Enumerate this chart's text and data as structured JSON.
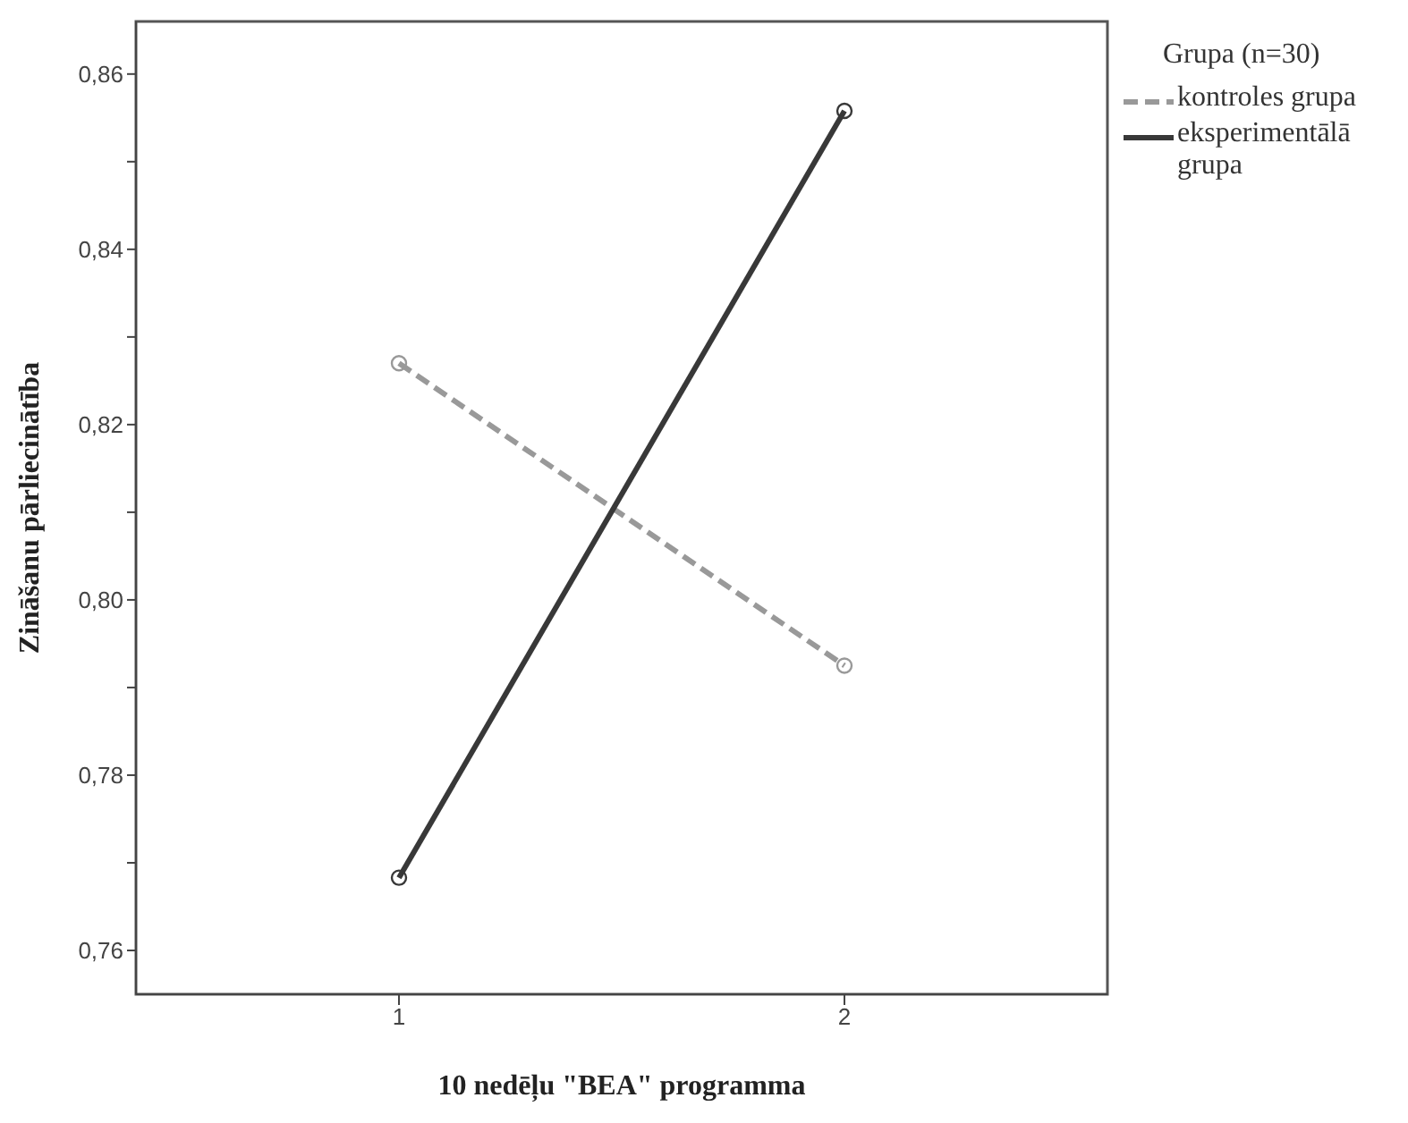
{
  "chart_data": {
    "type": "line",
    "xlabel": "10 nedēļu \"BEA\" programma",
    "ylabel": "Zināšanu pārliecinātība",
    "legend_title": "Grupa (n=30)",
    "categories": [
      "1",
      "2"
    ],
    "series": [
      {
        "name": "kontroles grupa",
        "color": "#999999",
        "line_style": "dashed",
        "values": [
          0.827,
          0.7925
        ]
      },
      {
        "name": "eksperimentālā grupa",
        "color": "#383838",
        "line_style": "solid",
        "values": [
          0.7683,
          0.8558
        ]
      }
    ],
    "ylim": [
      0.755,
      0.866
    ],
    "yticks": [
      {
        "value": 0.76,
        "label": "0,76"
      },
      {
        "value": 0.77,
        "label": null
      },
      {
        "value": 0.78,
        "label": "0,78"
      },
      {
        "value": 0.79,
        "label": null
      },
      {
        "value": 0.8,
        "label": "0,80"
      },
      {
        "value": 0.81,
        "label": null
      },
      {
        "value": 0.82,
        "label": "0,82"
      },
      {
        "value": 0.83,
        "label": null
      },
      {
        "value": 0.84,
        "label": "0,84"
      },
      {
        "value": 0.85,
        "label": null
      },
      {
        "value": 0.86,
        "label": "0,86"
      }
    ],
    "marker": "circle",
    "grid": false,
    "legend": "top right"
  }
}
